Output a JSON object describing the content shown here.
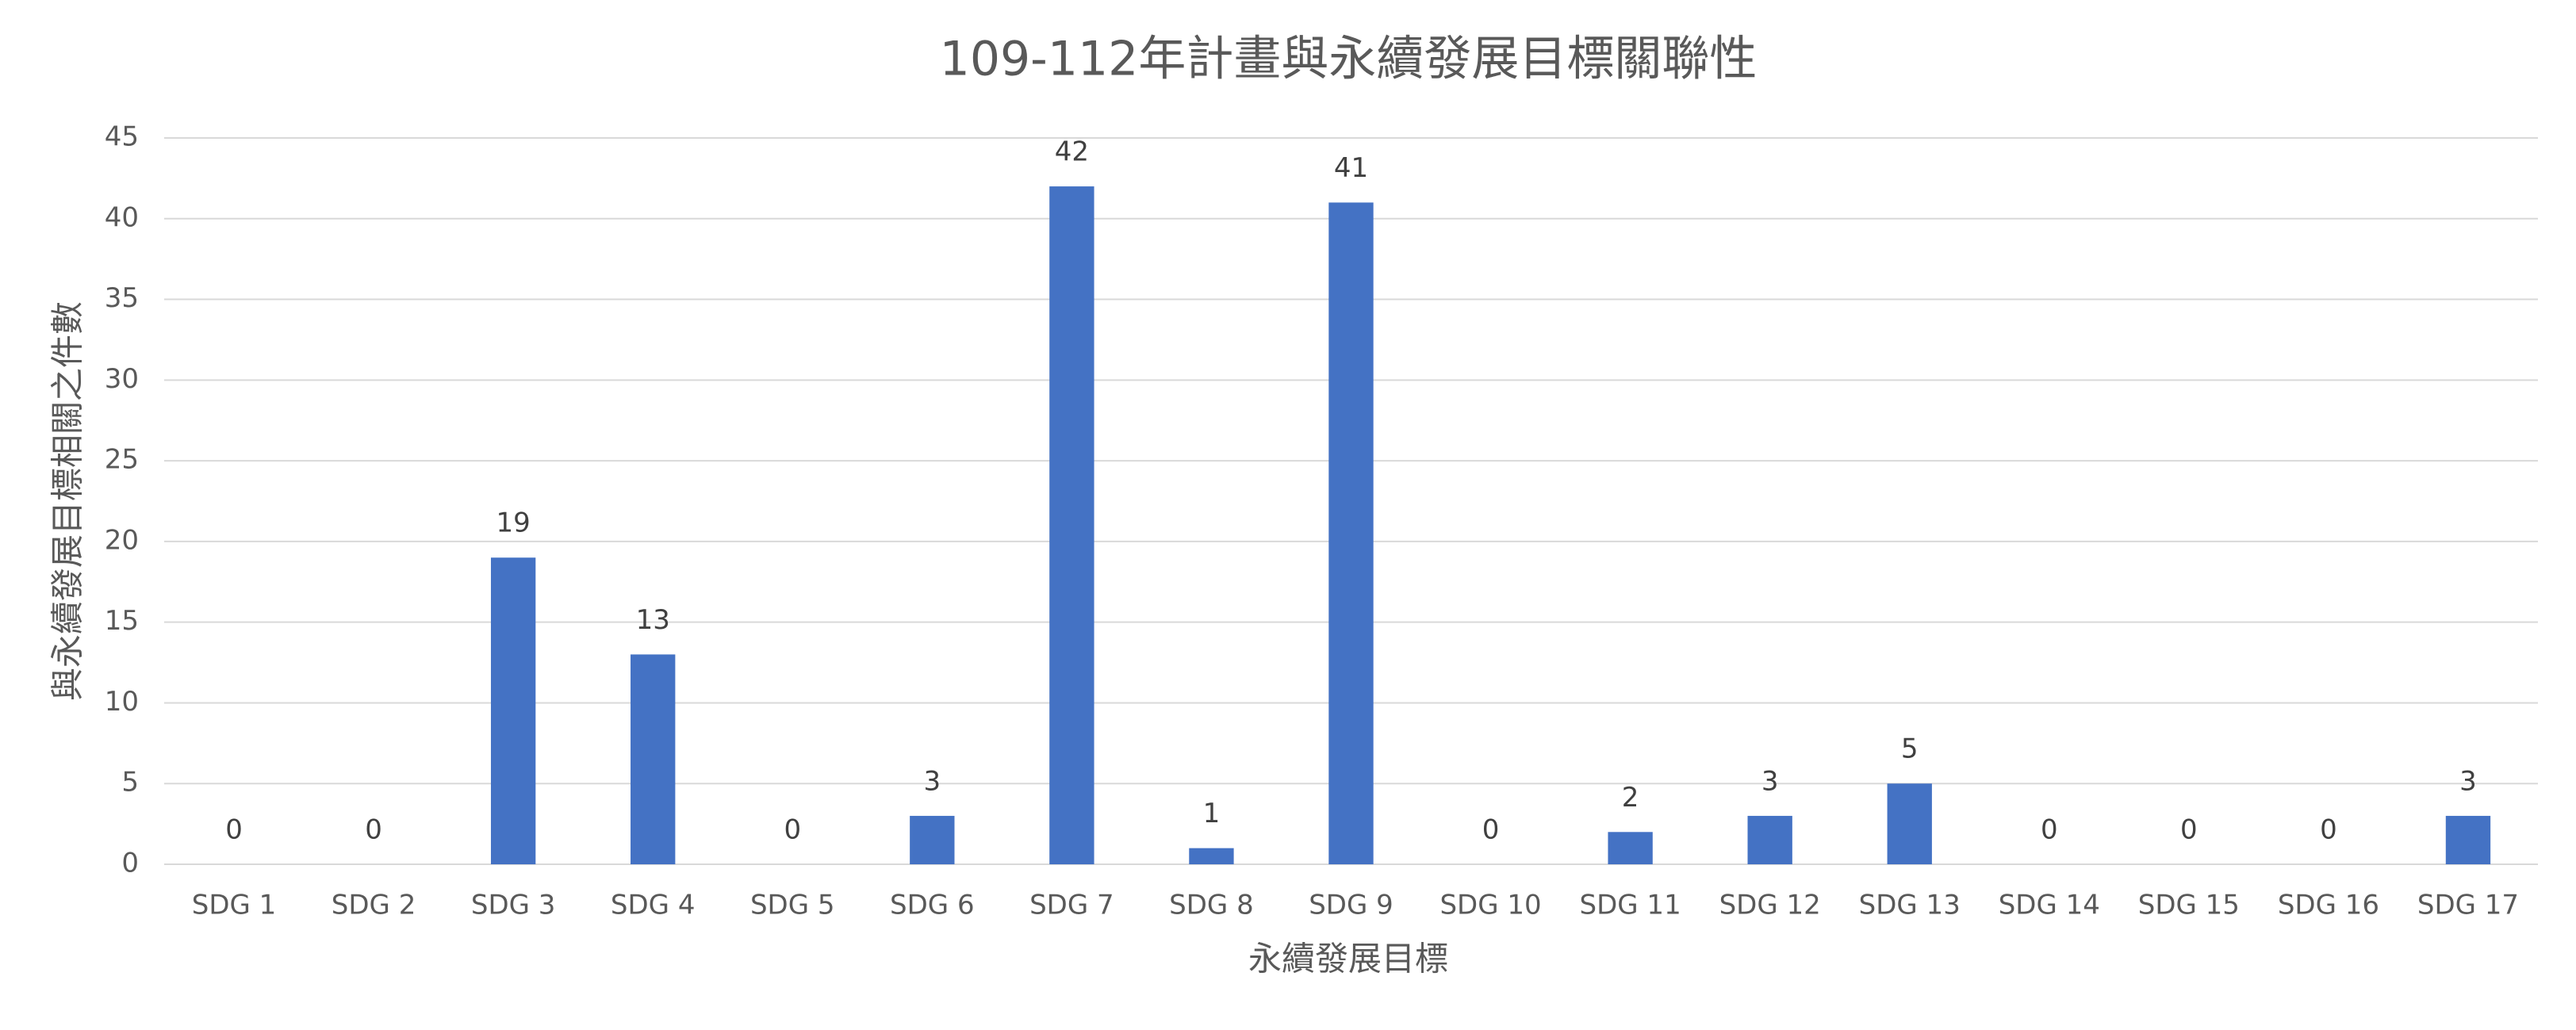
{
  "chart_data": {
    "type": "bar",
    "title": "109-112年計畫與永續發展目標關聯性",
    "x_label": "永續發展目標",
    "y_label": "與永續發展目標相關之件數",
    "categories": [
      "SDG 1",
      "SDG 2",
      "SDG 3",
      "SDG 4",
      "SDG 5",
      "SDG 6",
      "SDG 7",
      "SDG 8",
      "SDG 9",
      "SDG 10",
      "SDG 11",
      "SDG 12",
      "SDG 13",
      "SDG 14",
      "SDG 15",
      "SDG 16",
      "SDG 17"
    ],
    "values": [
      0,
      0,
      19,
      13,
      0,
      3,
      42,
      1,
      41,
      0,
      2,
      3,
      5,
      0,
      0,
      0,
      3
    ],
    "color": "#4472c4",
    "ylim": [
      0,
      45
    ],
    "yticks": [
      0,
      5,
      10,
      15,
      20,
      25,
      30,
      35,
      40,
      45
    ],
    "grid": true
  }
}
